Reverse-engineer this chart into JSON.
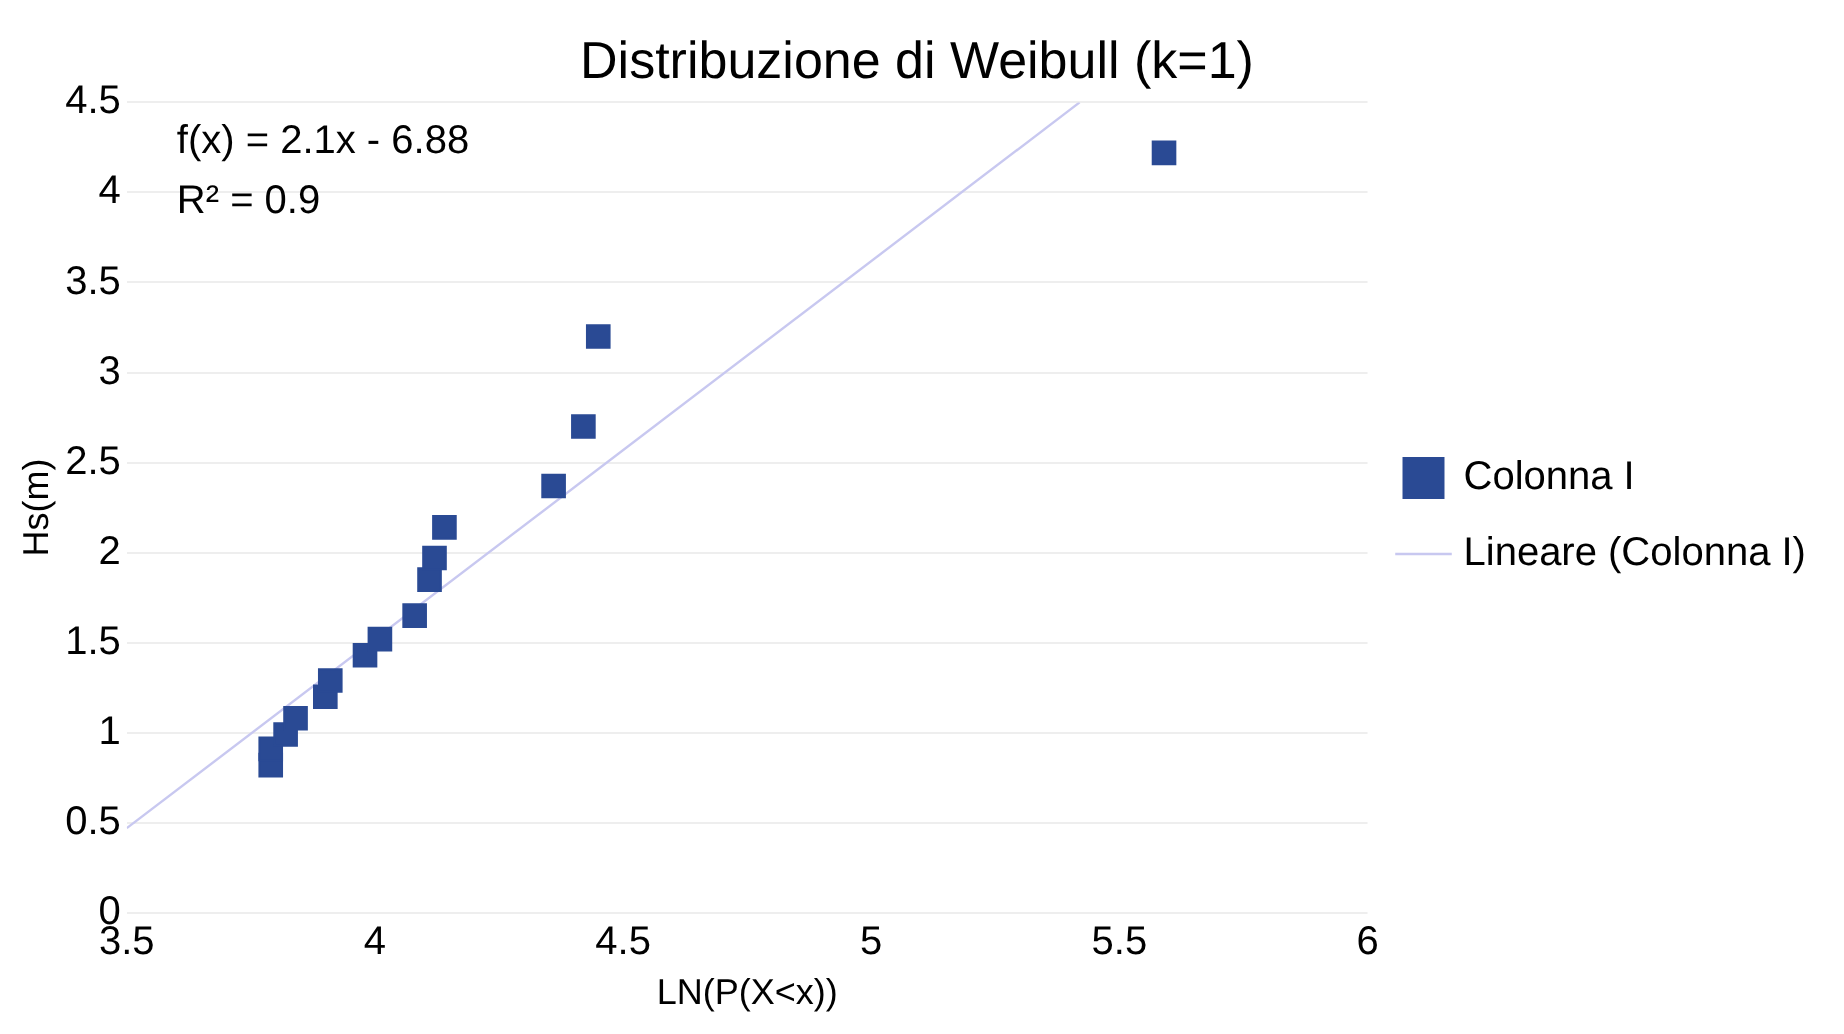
{
  "chart_data": {
    "type": "scatter",
    "title": "Distribuzione di Weibull (k=1)",
    "xlabel": "LN(P(X<x))",
    "ylabel": "Hs(m)",
    "annotations": [
      "f(x) = 2.1x - 6.88",
      "R² = 0.9"
    ],
    "series": [
      {
        "name": "Colonna I",
        "color": "#2a4a94",
        "marker": "square",
        "x": [
          3.79,
          3.79,
          3.82,
          3.84,
          3.9,
          3.91,
          3.98,
          4.01,
          4.08,
          4.11,
          4.12,
          4.14,
          4.36,
          4.42,
          4.45,
          5.59
        ],
        "values": [
          0.82,
          0.91,
          0.99,
          1.08,
          1.2,
          1.29,
          1.43,
          1.52,
          1.65,
          1.85,
          1.97,
          2.14,
          2.37,
          2.7,
          3.2,
          4.22
        ]
      },
      {
        "name": "Lineare (Colonna I)",
        "type": "line",
        "color": "#c8c8f0",
        "marker": "none",
        "x": [
          3.5,
          5.42
        ],
        "values": [
          0.47,
          4.5
        ]
      }
    ],
    "xlim": [
      3.5,
      6
    ],
    "xticks": [
      3.5,
      4,
      4.5,
      5,
      5.5,
      6
    ],
    "ylim": [
      0,
      4.5
    ],
    "yticks": [
      0,
      0.5,
      1,
      1.5,
      2,
      2.5,
      3,
      3.5,
      4,
      4.5
    ],
    "grid": "y",
    "legend": "right"
  }
}
